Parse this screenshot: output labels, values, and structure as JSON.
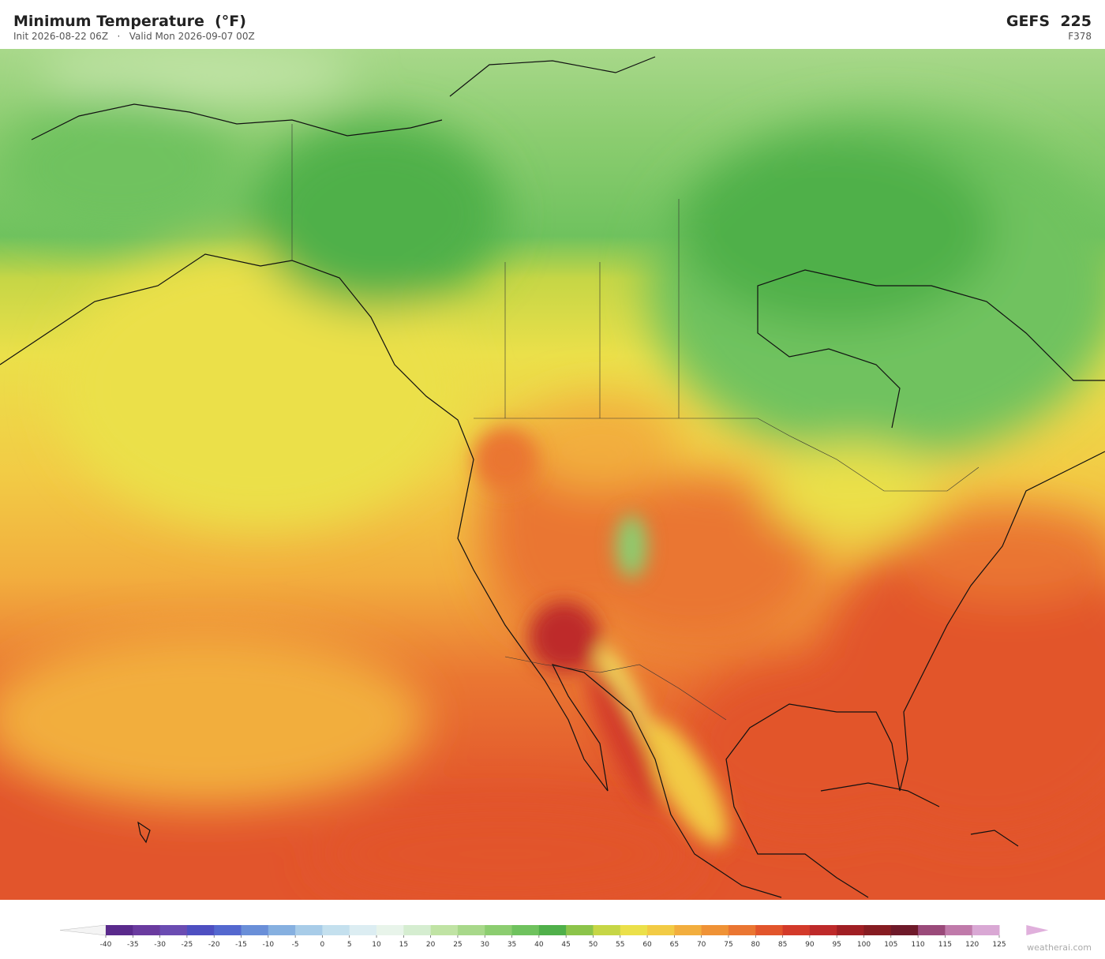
{
  "header": {
    "title": "Minimum Temperature  (°F)",
    "init": "Init 2026-08-22 06Z",
    "separator": "·",
    "valid": "Valid Mon 2026-09-07 00Z",
    "model": "GEFS  225",
    "forecast_hour": "F378"
  },
  "colorbar": {
    "ticks": [
      -40,
      -35,
      -30,
      -25,
      -20,
      -15,
      -10,
      -5,
      0,
      5,
      10,
      15,
      20,
      25,
      30,
      35,
      40,
      45,
      50,
      55,
      60,
      65,
      70,
      75,
      80,
      85,
      90,
      95,
      100,
      105,
      110,
      115,
      120,
      125
    ],
    "colors": [
      "#5a2a8c",
      "#6a3b9f",
      "#6b4cb2",
      "#4e4fc1",
      "#5468cf",
      "#6a8fd8",
      "#86b0e0",
      "#a8cce8",
      "#c4e0ee",
      "#dcedf2",
      "#e8f4ea",
      "#d5edd0",
      "#c0e3a4",
      "#a8d88a",
      "#8ccd70",
      "#6fc25e",
      "#50b04a",
      "#8cc44a",
      "#c6d646",
      "#ebe04a",
      "#f2cb45",
      "#f2ae3e",
      "#ef9236",
      "#ea7632",
      "#e2552c",
      "#d33a2a",
      "#be2a2a",
      "#a01f24",
      "#861c22",
      "#6e1a2a",
      "#9a4a7a",
      "#c07aaa",
      "#d9a8d4"
    ],
    "under_color": "#f4f4f4",
    "over_color": "#e0b0dc"
  },
  "watermark": "weatherai.com"
}
